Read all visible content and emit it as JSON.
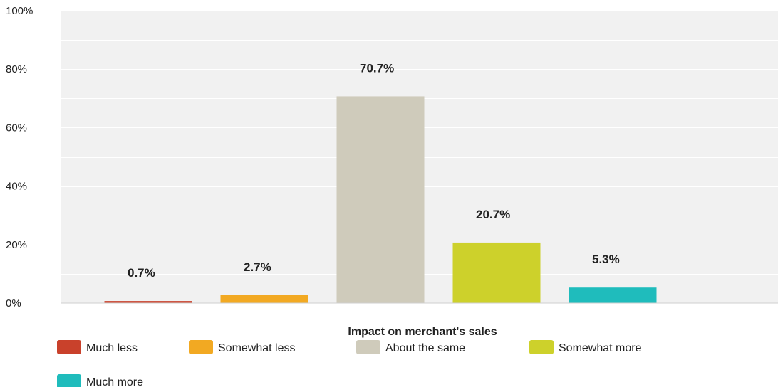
{
  "chart_data": {
    "type": "bar",
    "xlabel": "Impact on merchant's sales",
    "ylabel": "",
    "ylim": [
      0,
      100
    ],
    "yticks": [
      0,
      20,
      40,
      60,
      80,
      100
    ],
    "ytick_labels": [
      "0%",
      "20%",
      "40%",
      "60%",
      "80%",
      "100%"
    ],
    "grid": true,
    "legend_position": "bottom",
    "categories": [
      "Much less",
      "Somewhat less",
      "About the same",
      "Somewhat more",
      "Much more"
    ],
    "values": [
      0.7,
      2.7,
      70.7,
      20.7,
      5.3
    ],
    "data_labels": [
      "0.7%",
      "2.7%",
      "70.7%",
      "20.7%",
      "5.3%"
    ],
    "colors": [
      "#c9412b",
      "#f2a922",
      "#cfcbbb",
      "#cdd12b",
      "#1fbcbc"
    ]
  }
}
